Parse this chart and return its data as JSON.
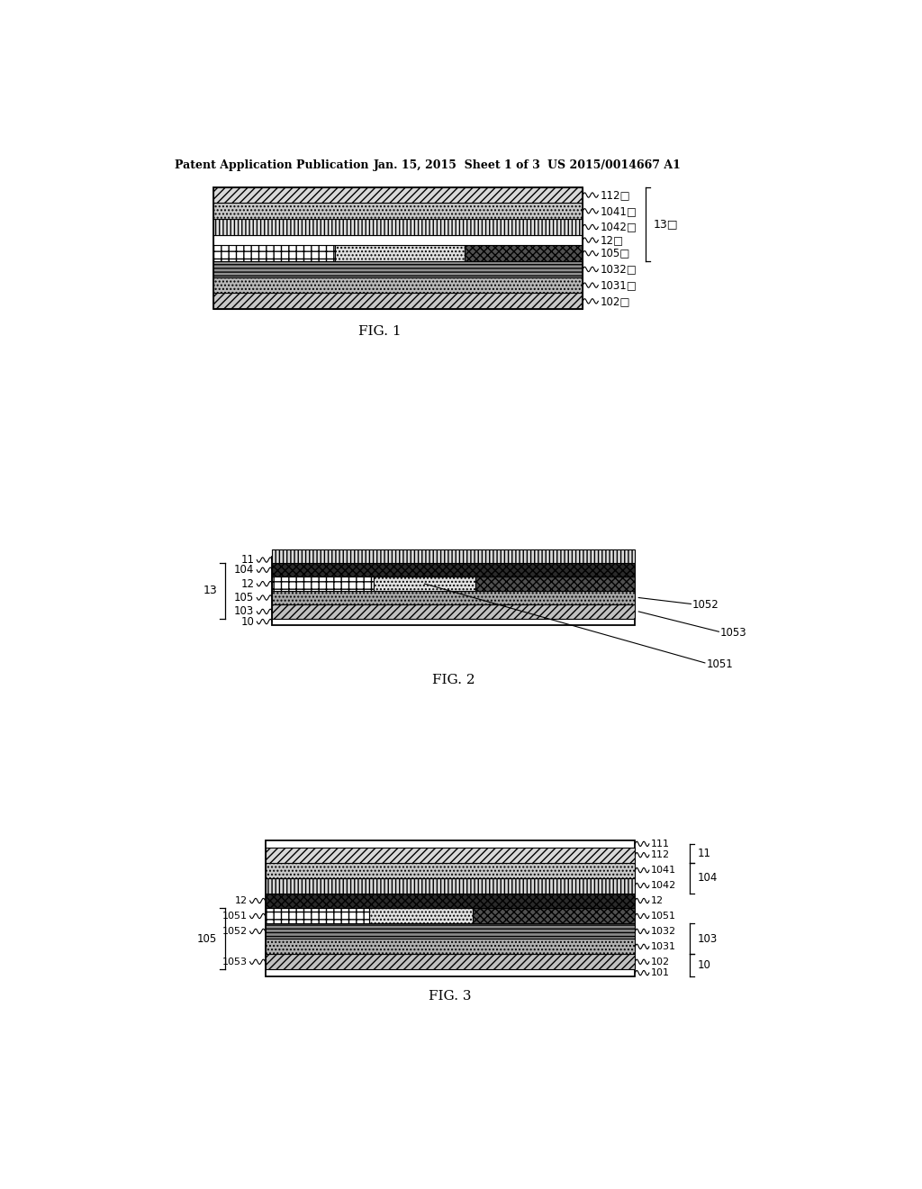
{
  "bg_color": "#ffffff",
  "header_left": "Patent Application Publication",
  "header_mid": "Jan. 15, 2015  Sheet 1 of 3",
  "header_right": "US 2015/0014667 A1",
  "fig1_caption": "FIG. 1",
  "fig2_caption": "FIG. 2",
  "fig3_caption": "FIG. 3"
}
